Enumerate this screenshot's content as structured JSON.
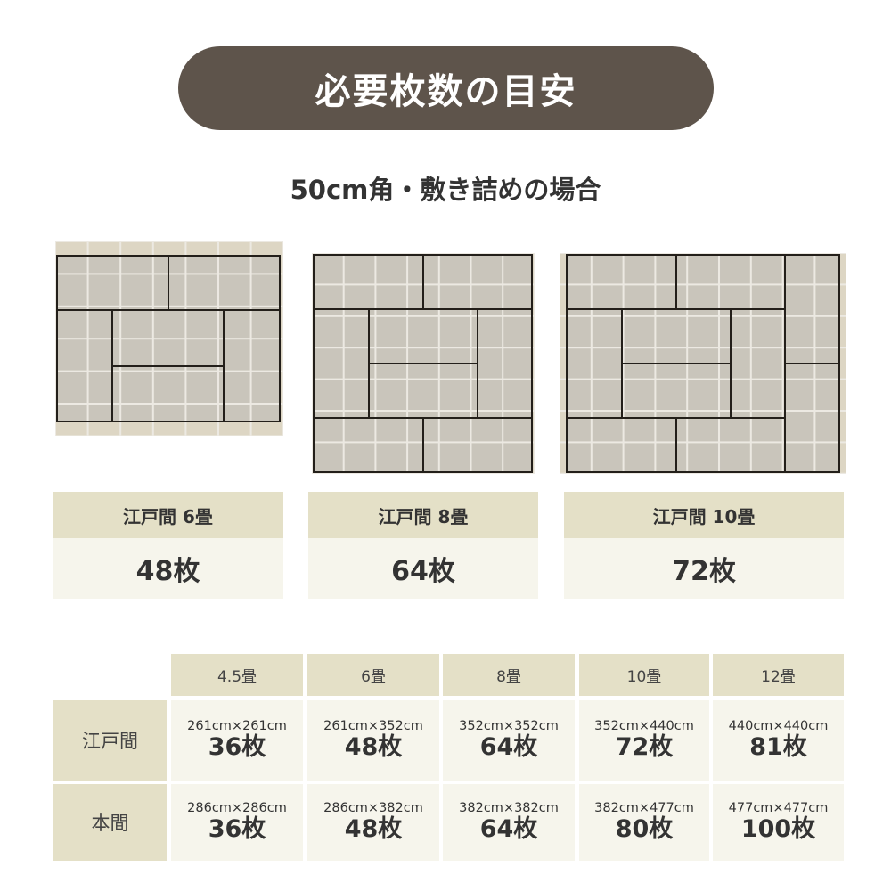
{
  "title": "必要枚数の目安",
  "subtitle": "50cm角・敷き詰めの場合",
  "cards": [
    {
      "label": "江戸間 6畳",
      "count": "48枚"
    },
    {
      "label": "江戸間 8畳",
      "count": "64枚"
    },
    {
      "label": "江戸間 10畳",
      "count": "72枚"
    }
  ],
  "table": {
    "columns": [
      "4.5畳",
      "6畳",
      "8畳",
      "10畳",
      "12畳"
    ],
    "rows": [
      {
        "label": "江戸間",
        "cells": [
          {
            "size": "261cm×261cm",
            "count": "36枚"
          },
          {
            "size": "261cm×352cm",
            "count": "48枚"
          },
          {
            "size": "352cm×352cm",
            "count": "64枚"
          },
          {
            "size": "352cm×440cm",
            "count": "72枚"
          },
          {
            "size": "440cm×440cm",
            "count": "81枚"
          }
        ]
      },
      {
        "label": "本間",
        "cells": [
          {
            "size": "286cm×286cm",
            "count": "36枚"
          },
          {
            "size": "286cm×382cm",
            "count": "48枚"
          },
          {
            "size": "382cm×382cm",
            "count": "64枚"
          },
          {
            "size": "382cm×477cm",
            "count": "80枚"
          },
          {
            "size": "477cm×477cm",
            "count": "100枚"
          }
        ]
      }
    ]
  },
  "colors": {
    "title_bg": "#5e544b",
    "header_bg": "#e4e0c7",
    "value_bg": "#f6f5ec",
    "mat": "#c9c5bb",
    "tile_edge": "#ddd6c4"
  }
}
